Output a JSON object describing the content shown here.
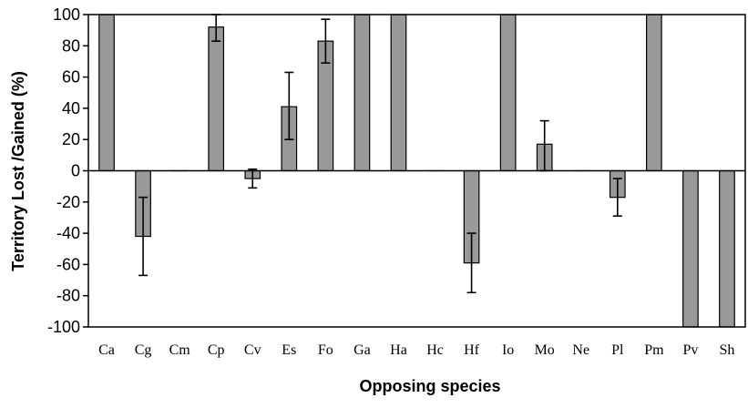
{
  "chart_data": {
    "type": "bar",
    "title": "",
    "xlabel": "Opposing species",
    "ylabel": "Territory Lost /Gained (%)",
    "ylim": [
      -100,
      100
    ],
    "yticks": [
      100,
      80,
      60,
      40,
      20,
      0,
      -20,
      -40,
      -60,
      -80,
      -100
    ],
    "ytick_labels": [
      "100",
      "80",
      "60",
      "40",
      "20",
      "0",
      "-20",
      "-40",
      "-60",
      "-80",
      "-100"
    ],
    "grid": false,
    "legend": "none",
    "categories": [
      "Ca",
      "Cg",
      "Cm",
      "Cp",
      "Cv",
      "Es",
      "Fo",
      "Ga",
      "Ha",
      "Hc",
      "Hf",
      "Io",
      "Mo",
      "Ne",
      "Pl",
      "Pm",
      "Pv",
      "Sh"
    ],
    "values": [
      100,
      -42,
      0,
      92,
      -5,
      41,
      83,
      100,
      100,
      0,
      -59,
      100,
      17,
      0,
      -17,
      100,
      -100,
      -100
    ],
    "error_lower": [
      null,
      -67,
      null,
      83,
      -11,
      20,
      69,
      null,
      null,
      null,
      -78,
      null,
      0,
      null,
      -29,
      null,
      null,
      null
    ],
    "error_upper": [
      null,
      -17,
      null,
      100,
      1,
      63,
      97,
      null,
      null,
      null,
      -40,
      null,
      32,
      null,
      -5,
      null,
      null,
      null
    ],
    "colors": {
      "bar_fill": "#999999",
      "bar_stroke": "#000000",
      "axis": "#000000"
    }
  }
}
